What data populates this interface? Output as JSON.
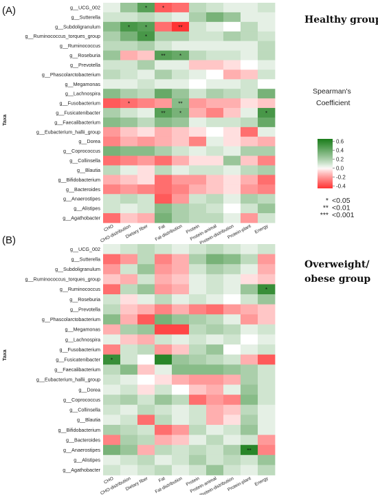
{
  "chart_data": [
    {
      "type": "heatmap",
      "panel_label": "(A)",
      "title": "Healthy group",
      "ylabel": "Taxa",
      "rows": [
        "g__UCG_002",
        "g__Sutterella",
        "g__Subdoligranulum",
        "g__Ruminococcus_torques_group",
        "g__Ruminococcus",
        "g__Roseburia",
        "g__Prevotella",
        "g__Phascolarctobacterium",
        "g__Megamonas",
        "g__Lachnospira",
        "g__Fusobacterium",
        "g__Fusicatenibacter",
        "g__Faecalibacterium",
        "g__Eubacterium_hallii_group",
        "g__Dorea",
        "g__Coprococcus",
        "g__Collinsella",
        "g__Blautia",
        "g__Bifidobacterium",
        "g__Bacteroides",
        "g__Anaerostipes",
        "g__Alistipes",
        "g__Agathobacter"
      ],
      "columns": [
        "CHO",
        "CHO-distribution",
        "Dietary fiber",
        "Fat",
        "Fat-distribution",
        "Protein",
        "Protein-animal",
        "Protein-distribution",
        "Protein-plant",
        "Energy"
      ],
      "values": [
        [
          0.05,
          0.25,
          0.45,
          -0.35,
          -0.3,
          0.15,
          0.1,
          0.05,
          0.05,
          0.1
        ],
        [
          0.1,
          0.1,
          0.15,
          0.1,
          0.05,
          0.2,
          0.35,
          0.25,
          0.05,
          0.05
        ],
        [
          0.3,
          0.5,
          0.45,
          -0.3,
          -0.45,
          0.1,
          0.05,
          0.0,
          0.15,
          0.05
        ],
        [
          0.2,
          0.35,
          0.5,
          0.2,
          0.2,
          0.1,
          0.1,
          0.2,
          0.15,
          0.1
        ],
        [
          0.15,
          0.15,
          0.2,
          0.1,
          0.05,
          0.05,
          0.05,
          0.05,
          0.05,
          0.15
        ],
        [
          0.25,
          -0.15,
          -0.1,
          0.45,
          0.4,
          0.15,
          0.1,
          0.1,
          0.05,
          0.15
        ],
        [
          0.1,
          0.1,
          0.2,
          0.05,
          0.05,
          -0.1,
          -0.1,
          -0.05,
          0.0,
          0.05
        ],
        [
          0.15,
          0.1,
          0.05,
          0.2,
          0.1,
          0.05,
          0.0,
          -0.15,
          -0.1,
          0.1
        ],
        [
          0.05,
          0.05,
          0.1,
          0.05,
          0.05,
          0.0,
          0.05,
          0.05,
          0.1,
          0.0
        ],
        [
          0.3,
          0.2,
          0.15,
          0.4,
          0.25,
          0.1,
          0.2,
          0.15,
          0.1,
          0.35
        ],
        [
          -0.35,
          -0.3,
          -0.25,
          -0.2,
          0.3,
          -0.2,
          -0.15,
          -0.15,
          -0.05,
          -0.1
        ],
        [
          0.2,
          0.1,
          0.05,
          0.45,
          0.35,
          -0.15,
          -0.25,
          -0.1,
          0.05,
          0.5
        ],
        [
          0.3,
          0.25,
          0.15,
          0.3,
          0.25,
          0.05,
          0.1,
          0.1,
          0.15,
          0.4
        ],
        [
          -0.2,
          -0.1,
          -0.05,
          -0.15,
          -0.1,
          -0.05,
          0.0,
          -0.05,
          -0.3,
          0.05
        ],
        [
          -0.25,
          -0.15,
          -0.2,
          -0.15,
          -0.1,
          -0.25,
          0.05,
          -0.05,
          -0.1,
          -0.15
        ],
        [
          0.35,
          0.3,
          0.3,
          0.2,
          0.1,
          0.05,
          0.1,
          0.05,
          0.2,
          0.2
        ],
        [
          -0.3,
          -0.25,
          -0.2,
          -0.3,
          -0.15,
          -0.05,
          -0.05,
          0.25,
          -0.1,
          -0.25
        ],
        [
          0.15,
          0.05,
          -0.05,
          0.15,
          0.05,
          0.1,
          0.1,
          0.05,
          0.15,
          0.2
        ],
        [
          -0.15,
          -0.1,
          -0.05,
          -0.3,
          -0.2,
          -0.2,
          -0.1,
          -0.05,
          -0.15,
          -0.3
        ],
        [
          -0.25,
          -0.2,
          -0.25,
          -0.3,
          -0.25,
          -0.15,
          -0.1,
          -0.05,
          -0.2,
          -0.25
        ],
        [
          0.1,
          0.15,
          0.1,
          -0.35,
          -0.2,
          0.1,
          0.15,
          0.05,
          0.2,
          0.15
        ],
        [
          0.1,
          0.05,
          0.1,
          0.3,
          0.2,
          0.15,
          0.1,
          0.0,
          0.1,
          0.25
        ],
        [
          -0.3,
          -0.1,
          -0.15,
          0.35,
          0.2,
          0.15,
          0.15,
          0.05,
          -0.2,
          0.1
        ]
      ],
      "significance": [
        {
          "row": "g__UCG_002",
          "col": "Dietary fiber",
          "mark": "*"
        },
        {
          "row": "g__UCG_002",
          "col": "Fat",
          "mark": "*"
        },
        {
          "row": "g__Subdoligranulum",
          "col": "CHO-distribution",
          "mark": "*"
        },
        {
          "row": "g__Subdoligranulum",
          "col": "Dietary fiber",
          "mark": "*"
        },
        {
          "row": "g__Subdoligranulum",
          "col": "Fat-distribution",
          "mark": "**"
        },
        {
          "row": "g__Ruminococcus_torques_group",
          "col": "Dietary fiber",
          "mark": "*"
        },
        {
          "row": "g__Roseburia",
          "col": "Fat",
          "mark": "**"
        },
        {
          "row": "g__Roseburia",
          "col": "Fat-distribution",
          "mark": "*"
        },
        {
          "row": "g__Fusobacterium",
          "col": "CHO-distribution",
          "mark": "*"
        },
        {
          "row": "g__Fusobacterium",
          "col": "Fat-distribution",
          "mark": "**"
        },
        {
          "row": "g__Fusicatenibacter",
          "col": "Fat",
          "mark": "**"
        },
        {
          "row": "g__Fusicatenibacter",
          "col": "Fat-distribution",
          "mark": "*"
        },
        {
          "row": "g__Fusicatenibacter",
          "col": "Energy",
          "mark": "*"
        }
      ]
    },
    {
      "type": "heatmap",
      "panel_label": "(B)",
      "title": "Overweight/ obese group",
      "title_lines": [
        "Overweight/",
        "obese group"
      ],
      "ylabel": "Taxa",
      "rows": [
        "g__UCG_002",
        "g__Sutterella",
        "g__Subdoligranulum",
        "g__Ruminococcus_torques_group",
        "g__Ruminococcus",
        "g__Roseburia",
        "g__Prevotella",
        "g__Phascolarctobacterium",
        "g__Megamonas",
        "g__Lachnospira",
        "g__Fusobacterium",
        "g__Fusicatenibacter",
        "g__Faecalibacterium",
        "g__Eubacterium_hallii_group",
        "g__Dorea",
        "g__Coprococcus",
        "g__Collinsella",
        "g__Blautia",
        "g__Bifidobacterium",
        "g__Bacteroides",
        "g__Anaerostipes",
        "g__Alistipes",
        "g__Agathobacter"
      ],
      "columns": [
        "CHO",
        "CHO-distribution",
        "Dietary fiber",
        "Fat",
        "Fat-distribution",
        "Protein",
        "Protein-animal",
        "Protein-distribution",
        "Protein-plant",
        "Energy"
      ],
      "values": [
        [
          0.05,
          0.1,
          0.15,
          0.1,
          0.05,
          0.1,
          0.15,
          0.1,
          0.05,
          0.1
        ],
        [
          -0.3,
          -0.2,
          0.15,
          -0.25,
          -0.15,
          0.2,
          0.35,
          0.3,
          0.15,
          -0.2
        ],
        [
          -0.2,
          0.1,
          0.25,
          -0.2,
          -0.15,
          0.1,
          0.2,
          0.15,
          0.05,
          -0.15
        ],
        [
          -0.1,
          -0.15,
          0.1,
          -0.15,
          -0.1,
          0.05,
          0.1,
          0.05,
          -0.05,
          -0.1
        ],
        [
          -0.3,
          0.15,
          0.25,
          -0.2,
          -0.15,
          0.05,
          0.1,
          0.05,
          0.25,
          0.55
        ],
        [
          0.1,
          -0.05,
          0.05,
          0.15,
          0.05,
          0.1,
          0.05,
          0.0,
          0.1,
          0.25
        ],
        [
          0.15,
          -0.1,
          -0.15,
          -0.25,
          -0.15,
          -0.25,
          -0.3,
          -0.2,
          -0.15,
          -0.1
        ],
        [
          0.3,
          -0.15,
          -0.35,
          0.35,
          0.25,
          0.2,
          0.15,
          0.05,
          -0.2,
          -0.1
        ],
        [
          -0.15,
          0.2,
          0.25,
          -0.4,
          -0.4,
          0.15,
          0.2,
          0.15,
          0.05,
          0.1
        ],
        [
          0.05,
          -0.1,
          -0.15,
          0.1,
          0.05,
          0.1,
          0.05,
          0.1,
          0.0,
          0.05
        ],
        [
          -0.25,
          0.1,
          0.15,
          -0.2,
          -0.1,
          0.15,
          0.25,
          0.0,
          0.05,
          0.1
        ],
        [
          0.55,
          0.1,
          0.0,
          0.6,
          0.25,
          0.2,
          0.15,
          0.1,
          -0.15,
          -0.35
        ],
        [
          0.15,
          0.3,
          -0.1,
          0.05,
          0.3,
          0.3,
          0.3,
          0.25,
          0.2,
          0.1
        ],
        [
          0.1,
          0.05,
          0.0,
          -0.05,
          -0.15,
          -0.2,
          -0.2,
          -0.15,
          0.2,
          0.1
        ],
        [
          0.05,
          0.1,
          -0.05,
          0.1,
          0.0,
          -0.1,
          -0.15,
          0.05,
          0.25,
          0.1
        ],
        [
          0.15,
          0.2,
          0.1,
          0.25,
          0.15,
          -0.3,
          -0.2,
          -0.25,
          0.3,
          0.1
        ],
        [
          0.1,
          0.05,
          0.15,
          0.1,
          0.05,
          0.1,
          -0.15,
          -0.1,
          0.15,
          0.05
        ],
        [
          0.05,
          0.1,
          -0.3,
          0.15,
          0.05,
          0.1,
          -0.15,
          -0.05,
          0.2,
          0.05
        ],
        [
          0.2,
          0.15,
          0.1,
          -0.3,
          -0.2,
          0.15,
          0.05,
          0.1,
          0.25,
          0.05
        ],
        [
          -0.25,
          0.2,
          0.15,
          -0.15,
          -0.1,
          0.05,
          0.15,
          0.05,
          0.1,
          -0.2
        ],
        [
          0.35,
          0.25,
          -0.15,
          0.15,
          0.1,
          0.15,
          0.1,
          0.2,
          0.6,
          -0.25
        ],
        [
          0.05,
          0.1,
          0.15,
          0.05,
          0.1,
          0.2,
          0.1,
          0.15,
          0.1,
          0.25
        ],
        [
          0.1,
          0.05,
          0.1,
          0.15,
          0.05,
          0.1,
          0.25,
          0.1,
          0.05,
          0.15
        ]
      ],
      "significance": [
        {
          "row": "g__Ruminococcus",
          "col": "Energy",
          "mark": "*"
        },
        {
          "row": "g__Fusicatenibacter",
          "col": "CHO",
          "mark": "*"
        },
        {
          "row": "g__Anaerostipes",
          "col": "Protein-plant",
          "mark": "**"
        }
      ]
    }
  ],
  "legend": {
    "title_lines": [
      "Spearman's",
      "Coefficient"
    ],
    "ticks": [
      0.6,
      0.4,
      0.2,
      0.0,
      -0.2,
      -0.4
    ],
    "tick_labels": [
      "0.6",
      "0.4",
      "0.2",
      "0.0",
      "-0.2",
      "-0.4"
    ],
    "range": [
      -0.45,
      0.65
    ],
    "colors": {
      "low": "#ff3333",
      "mid": "#ffffff",
      "high": "#1a7d1a"
    }
  },
  "significance_key": [
    {
      "mark": "*",
      "label": "<0.05"
    },
    {
      "mark": "**",
      "label": "<0.01"
    },
    {
      "mark": "***",
      "label": "<0.001"
    }
  ]
}
